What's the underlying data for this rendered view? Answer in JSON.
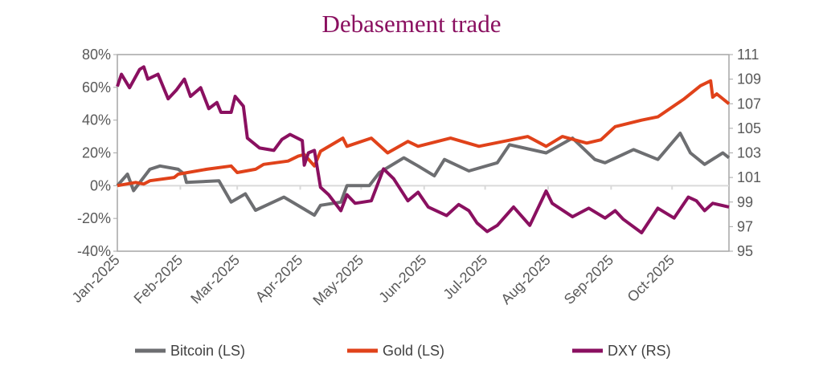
{
  "chart_data": {
    "type": "line",
    "title": "Debasement trade",
    "x_ticks": [
      "Jan-2025",
      "Feb-2025",
      "Mar-2025",
      "Apr-2025",
      "May-2025",
      "Jun-2025",
      "Jul-2025",
      "Aug-2025",
      "Sep-2025",
      "Oct-2025"
    ],
    "x_range": [
      "2025-01-01",
      "2025-10-29"
    ],
    "y_left": {
      "ticks": [
        "-40%",
        "-20%",
        "0%",
        "20%",
        "40%",
        "60%",
        "80%"
      ],
      "range": [
        -40,
        80
      ],
      "unit": "%"
    },
    "y_right": {
      "ticks": [
        "95",
        "97",
        "99",
        "101",
        "103",
        "105",
        "107",
        "109",
        "111"
      ],
      "range": [
        95,
        111
      ]
    },
    "grid": "zero line only",
    "legend_position": "bottom",
    "series": [
      {
        "name": "Bitcoin (LS)",
        "axis": "left",
        "color": "#6d6e71",
        "points": [
          [
            "2025-01-01",
            0
          ],
          [
            "2025-01-06",
            7
          ],
          [
            "2025-01-09",
            -3
          ],
          [
            "2025-01-17",
            10
          ],
          [
            "2025-01-22",
            12
          ],
          [
            "2025-01-31",
            10
          ],
          [
            "2025-02-03",
            7
          ],
          [
            "2025-02-04",
            2
          ],
          [
            "2025-02-20",
            3
          ],
          [
            "2025-02-26",
            -10
          ],
          [
            "2025-03-05",
            -5
          ],
          [
            "2025-03-10",
            -15
          ],
          [
            "2025-03-24",
            -7
          ],
          [
            "2025-04-08",
            -18
          ],
          [
            "2025-04-11",
            -12
          ],
          [
            "2025-04-21",
            -10
          ],
          [
            "2025-04-24",
            0
          ],
          [
            "2025-05-05",
            0
          ],
          [
            "2025-05-10",
            8
          ],
          [
            "2025-05-22",
            17
          ],
          [
            "2025-05-29",
            12
          ],
          [
            "2025-06-06",
            6
          ],
          [
            "2025-06-11",
            16
          ],
          [
            "2025-06-23",
            9
          ],
          [
            "2025-07-07",
            14
          ],
          [
            "2025-07-13",
            25
          ],
          [
            "2025-07-31",
            20
          ],
          [
            "2025-08-13",
            29
          ],
          [
            "2025-08-24",
            16
          ],
          [
            "2025-08-29",
            14
          ],
          [
            "2025-09-12",
            22
          ],
          [
            "2025-09-24",
            16
          ],
          [
            "2025-10-05",
            32
          ],
          [
            "2025-10-10",
            20
          ],
          [
            "2025-10-17",
            13
          ],
          [
            "2025-10-26",
            20
          ],
          [
            "2025-10-29",
            17
          ]
        ]
      },
      {
        "name": "Gold (LS)",
        "axis": "left",
        "color": "#e0421a",
        "points": [
          [
            "2025-01-01",
            0
          ],
          [
            "2025-01-10",
            2
          ],
          [
            "2025-01-14",
            1
          ],
          [
            "2025-01-17",
            3
          ],
          [
            "2025-01-29",
            5
          ],
          [
            "2025-01-31",
            7
          ],
          [
            "2025-02-14",
            10
          ],
          [
            "2025-02-26",
            12
          ],
          [
            "2025-03-01",
            8
          ],
          [
            "2025-03-10",
            10
          ],
          [
            "2025-03-14",
            13
          ],
          [
            "2025-03-26",
            15
          ],
          [
            "2025-03-31",
            18
          ],
          [
            "2025-04-03",
            19
          ],
          [
            "2025-04-08",
            12
          ],
          [
            "2025-04-11",
            21
          ],
          [
            "2025-04-22",
            29
          ],
          [
            "2025-04-24",
            24
          ],
          [
            "2025-05-06",
            29
          ],
          [
            "2025-05-14",
            20
          ],
          [
            "2025-05-24",
            27
          ],
          [
            "2025-05-29",
            24
          ],
          [
            "2025-06-14",
            29
          ],
          [
            "2025-06-28",
            24
          ],
          [
            "2025-07-22",
            30
          ],
          [
            "2025-07-31",
            24
          ],
          [
            "2025-08-08",
            30
          ],
          [
            "2025-08-20",
            26
          ],
          [
            "2025-08-27",
            28
          ],
          [
            "2025-09-03",
            36
          ],
          [
            "2025-09-16",
            40
          ],
          [
            "2025-09-24",
            42
          ],
          [
            "2025-10-07",
            53
          ],
          [
            "2025-10-15",
            61
          ],
          [
            "2025-10-20",
            64
          ],
          [
            "2025-10-21",
            54
          ],
          [
            "2025-10-23",
            56
          ],
          [
            "2025-10-29",
            50
          ]
        ]
      },
      {
        "name": "DXY (RS)",
        "axis": "right",
        "color": "#8a1060",
        "points": [
          [
            "2025-01-01",
            108.4
          ],
          [
            "2025-01-03",
            109.4
          ],
          [
            "2025-01-07",
            108.3
          ],
          [
            "2025-01-12",
            109.8
          ],
          [
            "2025-01-14",
            110.0
          ],
          [
            "2025-01-16",
            109.0
          ],
          [
            "2025-01-21",
            109.4
          ],
          [
            "2025-01-26",
            107.4
          ],
          [
            "2025-01-30",
            108.1
          ],
          [
            "2025-02-03",
            109.0
          ],
          [
            "2025-02-06",
            107.6
          ],
          [
            "2025-02-11",
            108.3
          ],
          [
            "2025-02-15",
            106.6
          ],
          [
            "2025-02-19",
            107.1
          ],
          [
            "2025-02-21",
            106.3
          ],
          [
            "2025-02-26",
            106.3
          ],
          [
            "2025-02-28",
            107.6
          ],
          [
            "2025-03-04",
            106.8
          ],
          [
            "2025-03-06",
            104.2
          ],
          [
            "2025-03-12",
            103.4
          ],
          [
            "2025-03-19",
            103.2
          ],
          [
            "2025-03-23",
            104.1
          ],
          [
            "2025-03-27",
            104.5
          ],
          [
            "2025-04-02",
            104.0
          ],
          [
            "2025-04-03",
            102.0
          ],
          [
            "2025-04-05",
            103.0
          ],
          [
            "2025-04-08",
            103.2
          ],
          [
            "2025-04-11",
            100.2
          ],
          [
            "2025-04-15",
            99.6
          ],
          [
            "2025-04-21",
            98.3
          ],
          [
            "2025-04-24",
            99.6
          ],
          [
            "2025-04-28",
            98.9
          ],
          [
            "2025-05-06",
            99.1
          ],
          [
            "2025-05-12",
            101.7
          ],
          [
            "2025-05-17",
            100.9
          ],
          [
            "2025-05-24",
            99.1
          ],
          [
            "2025-05-29",
            99.8
          ],
          [
            "2025-06-03",
            98.6
          ],
          [
            "2025-06-12",
            97.9
          ],
          [
            "2025-06-18",
            98.8
          ],
          [
            "2025-06-23",
            98.3
          ],
          [
            "2025-06-27",
            97.3
          ],
          [
            "2025-07-02",
            96.6
          ],
          [
            "2025-07-07",
            97.1
          ],
          [
            "2025-07-15",
            98.6
          ],
          [
            "2025-07-23",
            97.1
          ],
          [
            "2025-07-31",
            99.9
          ],
          [
            "2025-08-03",
            98.9
          ],
          [
            "2025-08-13",
            97.8
          ],
          [
            "2025-08-21",
            98.5
          ],
          [
            "2025-08-29",
            97.7
          ],
          [
            "2025-09-03",
            98.3
          ],
          [
            "2025-09-07",
            97.6
          ],
          [
            "2025-09-16",
            96.5
          ],
          [
            "2025-09-24",
            98.5
          ],
          [
            "2025-10-02",
            97.7
          ],
          [
            "2025-10-09",
            99.4
          ],
          [
            "2025-10-13",
            99.1
          ],
          [
            "2025-10-17",
            98.3
          ],
          [
            "2025-10-21",
            98.9
          ],
          [
            "2025-10-29",
            98.6
          ]
        ]
      }
    ]
  }
}
